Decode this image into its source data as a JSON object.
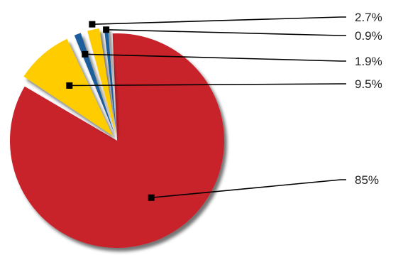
{
  "chart_data": {
    "type": "pie",
    "exploded": true,
    "three_d_shadow": true,
    "legend": "none",
    "slices": [
      {
        "label": "85%",
        "value": 85,
        "color": "#c8202a"
      },
      {
        "label": "9.5%",
        "value": 9.5,
        "color": "#ffcc00"
      },
      {
        "label": "1.9%",
        "value": 1.9,
        "color": "#1f5d9c"
      },
      {
        "label": "2.7%",
        "value": 2.7,
        "color": "#ffcc00"
      },
      {
        "label": "0.9%",
        "value": 0.9,
        "color": "#1f5d9c"
      }
    ]
  }
}
